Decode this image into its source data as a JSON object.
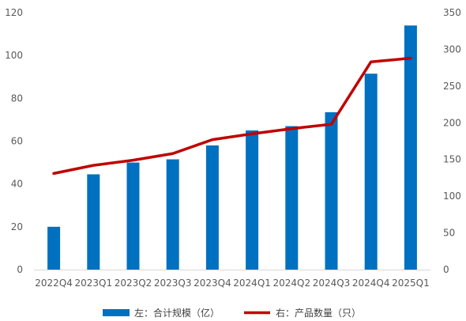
{
  "chart_data": {
    "type": "bar+line",
    "categories": [
      "2022Q4",
      "2023Q1",
      "2023Q2",
      "2023Q3",
      "2023Q4",
      "2024Q1",
      "2024Q2",
      "2024Q3",
      "2024Q4",
      "2025Q1"
    ],
    "series": [
      {
        "name": "左：合计规模（亿）",
        "type": "bar",
        "axis": "left",
        "color": "#0070C0",
        "values": [
          20,
          44.5,
          50,
          51.5,
          58,
          65,
          67,
          73.5,
          91.5,
          114
        ]
      },
      {
        "name": "右：产品数量（只）",
        "type": "line",
        "axis": "right",
        "color": "#C00000",
        "values": [
          131,
          142,
          149,
          158,
          177,
          185,
          192,
          198,
          283,
          288
        ]
      }
    ],
    "y_left": {
      "min": 0,
      "max": 120,
      "ticks": [
        0,
        20,
        40,
        60,
        80,
        100,
        120
      ]
    },
    "y_right": {
      "min": 0,
      "max": 350,
      "ticks": [
        0,
        50,
        100,
        150,
        200,
        250,
        300,
        350
      ]
    },
    "grid": false,
    "legend_position": "bottom"
  }
}
